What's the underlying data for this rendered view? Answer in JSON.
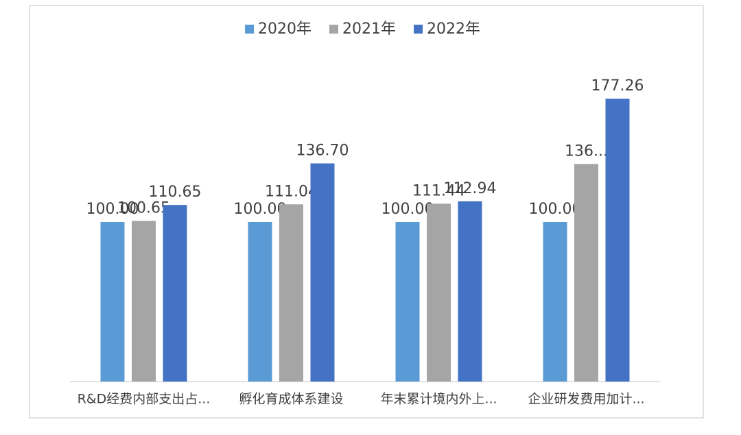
{
  "chart_data": {
    "type": "bar",
    "categories": [
      "R&D经费内部支出占...",
      "孵化育成体系建设",
      "年末累计境内外上...",
      "企业研发费用加计..."
    ],
    "series": [
      {
        "name": "2020年",
        "color": "#5b9bd5",
        "values": [
          100.0,
          100.0,
          100.0,
          100.0
        ],
        "value_labels": [
          "100.00",
          "100.00",
          "100.00",
          "100.00"
        ]
      },
      {
        "name": "2021年",
        "color": "#a5a5a5",
        "values": [
          100.65,
          111.04,
          111.44,
          136.3
        ],
        "value_labels": [
          "100.65",
          "111.04",
          "111.44",
          "136..."
        ]
      },
      {
        "name": "2022年",
        "color": "#4472c4",
        "values": [
          110.65,
          136.7,
          112.94,
          177.26
        ],
        "value_labels": [
          "110.65",
          "136.70",
          "112.94",
          "177.26"
        ]
      }
    ],
    "ylim": [
      0,
      200
    ]
  }
}
